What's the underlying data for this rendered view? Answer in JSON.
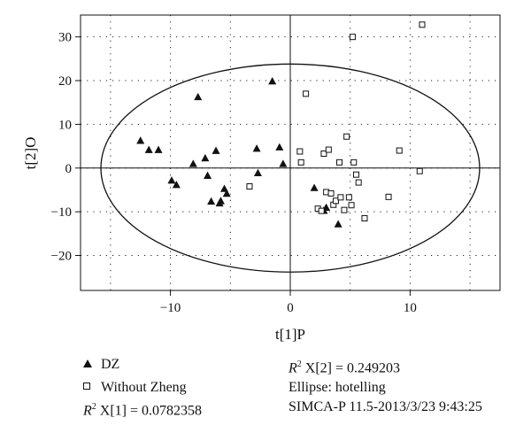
{
  "chart_data": {
    "type": "scatter",
    "xlabel": "t[1]P",
    "ylabel": "t[2]O",
    "xlim": [
      -17.5,
      17.5
    ],
    "ylim": [
      -28,
      35
    ],
    "xticks": [
      -10,
      0,
      10
    ],
    "yticks": [
      -20,
      -10,
      0,
      10,
      20,
      30
    ],
    "grid": true,
    "ellipse": {
      "name": "hotelling",
      "center": [
        0,
        0
      ],
      "rx": 15.8,
      "ry": 23.8
    },
    "series": [
      {
        "name": "DZ",
        "marker": "triangle",
        "points": [
          [
            -12.5,
            6.3
          ],
          [
            -11.8,
            4.2
          ],
          [
            -11.0,
            4.2
          ],
          [
            -9.9,
            -2.8
          ],
          [
            -9.5,
            -3.8
          ],
          [
            -8.1,
            1.0
          ],
          [
            -7.7,
            16.3
          ],
          [
            -7.1,
            2.3
          ],
          [
            -6.9,
            -1.7
          ],
          [
            -6.6,
            -7.6
          ],
          [
            -6.2,
            4.0
          ],
          [
            -5.9,
            -8.0
          ],
          [
            -5.8,
            -7.5
          ],
          [
            -5.5,
            -4.7
          ],
          [
            -5.3,
            -5.8
          ],
          [
            -2.8,
            4.5
          ],
          [
            -2.7,
            -1.1
          ],
          [
            -1.5,
            19.9
          ],
          [
            -0.9,
            4.8
          ],
          [
            -0.6,
            1.0
          ],
          [
            2.0,
            -4.5
          ],
          [
            2.8,
            -9.7
          ],
          [
            3.0,
            -9.0
          ],
          [
            4.0,
            -12.8
          ]
        ]
      },
      {
        "name": "Without Zheng",
        "marker": "square",
        "points": [
          [
            -3.4,
            -4.2
          ],
          [
            0.8,
            3.8
          ],
          [
            0.9,
            1.3
          ],
          [
            1.3,
            17.0
          ],
          [
            2.3,
            -9.3
          ],
          [
            2.6,
            -9.8
          ],
          [
            2.8,
            3.3
          ],
          [
            3.0,
            -5.5
          ],
          [
            3.2,
            4.2
          ],
          [
            3.4,
            -5.8
          ],
          [
            3.6,
            -8.4
          ],
          [
            3.8,
            -7.5
          ],
          [
            4.1,
            1.3
          ],
          [
            4.2,
            -6.7
          ],
          [
            4.5,
            -9.6
          ],
          [
            4.7,
            7.2
          ],
          [
            4.9,
            -6.7
          ],
          [
            5.1,
            -8.5
          ],
          [
            5.2,
            30.0
          ],
          [
            5.3,
            1.3
          ],
          [
            5.5,
            -1.5
          ],
          [
            5.7,
            -3.3
          ],
          [
            6.2,
            -11.5
          ],
          [
            8.2,
            -6.6
          ],
          [
            9.1,
            4.0
          ],
          [
            10.8,
            -0.7
          ],
          [
            11.0,
            32.8
          ]
        ]
      }
    ]
  },
  "legend": {
    "dz_label": "DZ",
    "wz_label": "Without Zheng",
    "r2x1_label": "X[1] = 0.0782358",
    "r2x2_label": "X[2] = 0.249203",
    "r2_symbol": "R",
    "r2_sup": "2",
    "ellipse_text": "Ellipse: hotelling",
    "software_text": "SIMCA-P 11.5-2013/3/23 9:43:25"
  }
}
